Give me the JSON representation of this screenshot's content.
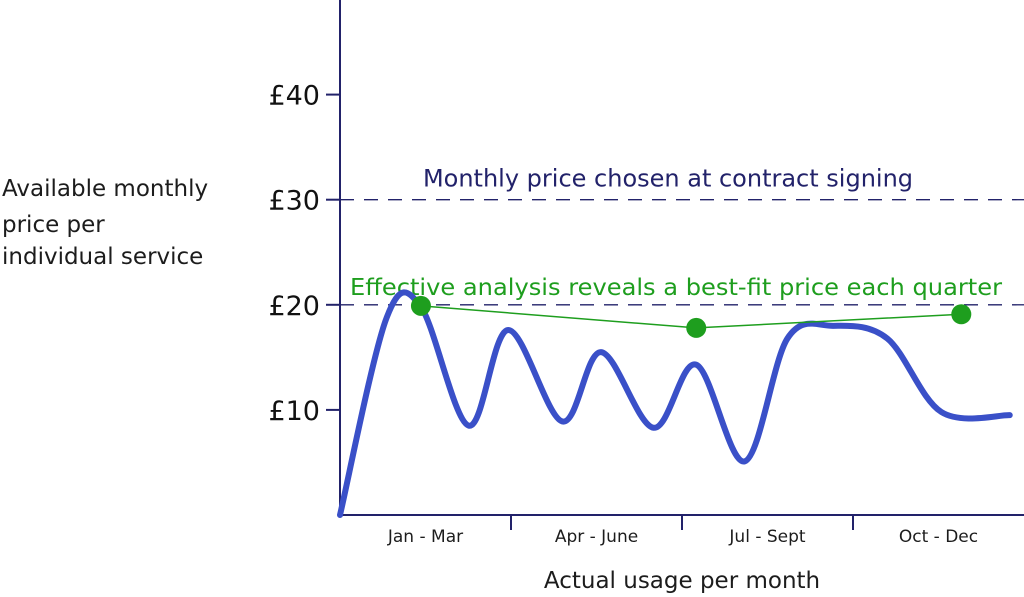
{
  "chart_data": {
    "type": "line",
    "ylabel_lines": [
      "Available monthly",
      "price per",
      "individual service"
    ],
    "xlabel": "Actual usage per month",
    "yticks": [
      {
        "value": 10,
        "label": "£10"
      },
      {
        "value": 20,
        "label": "£20"
      },
      {
        "value": 30,
        "label": "£30"
      },
      {
        "value": 40,
        "label": "£40"
      }
    ],
    "ylim": [
      0,
      49
    ],
    "xlim": [
      0,
      12
    ],
    "xcategories": [
      "Jan - Mar",
      "Apr - June",
      "Jul - Sept",
      "Oct - Dec"
    ],
    "x_dividers": [
      3,
      6,
      9
    ],
    "reference_lines": [
      {
        "value": 30,
        "label": "Monthly price chosen at contract signing",
        "color": "#22226a"
      },
      {
        "value": 20,
        "label": "Effective analysis reveals a best-fit price each quarter",
        "color": "#1e9e1e"
      }
    ],
    "series": [
      {
        "color": "#3a50c8",
        "x": [
          0,
          0.82,
          1.42,
          2.26,
          2.95,
          3.9,
          4.58,
          5.5,
          6.25,
          7.1,
          7.85,
          8.65,
          9.6,
          10.55,
          11.75
        ],
        "y": [
          0,
          18.8,
          19.8,
          8.5,
          17.6,
          8.9,
          15.5,
          8.3,
          14.3,
          5.1,
          16.8,
          18.0,
          16.8,
          9.8,
          9.5
        ]
      }
    ],
    "best_fit_points": {
      "color": "#1e9e1e",
      "x": [
        1.42,
        6.25,
        10.9
      ],
      "y": [
        19.9,
        17.8,
        19.1
      ]
    }
  }
}
